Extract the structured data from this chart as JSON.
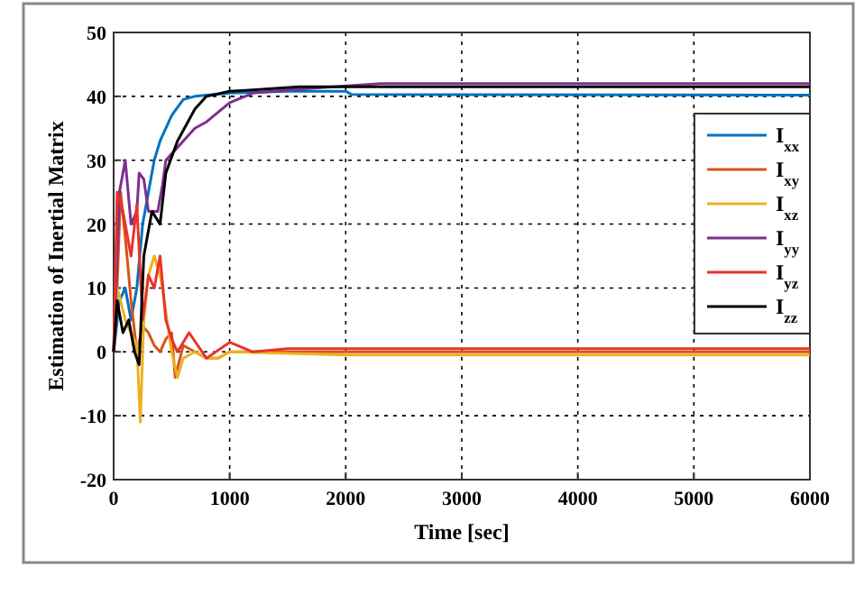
{
  "chart_data": {
    "type": "line",
    "xlabel": "Time [sec]",
    "ylabel": "Estimation of Inertial Matrix",
    "xlim": [
      0,
      6000
    ],
    "ylim": [
      -20,
      50
    ],
    "xticks": [
      0,
      1000,
      2000,
      3000,
      4000,
      5000,
      6000
    ],
    "yticks": [
      -20,
      -10,
      0,
      10,
      20,
      30,
      40,
      50
    ],
    "grid": true,
    "legend": "right",
    "line_style": "solid",
    "marker": "none",
    "series": [
      {
        "name": "I$_{xx}$",
        "color": "#0072bd",
        "x": [
          0,
          50,
          100,
          150,
          200,
          250,
          300,
          350,
          400,
          500,
          600,
          700,
          800,
          1000,
          1500,
          2000,
          2050,
          6000
        ],
        "values": [
          0,
          8,
          10,
          5,
          10,
          20,
          25,
          30,
          33,
          37,
          39.5,
          40,
          40.2,
          40.5,
          40.8,
          40.8,
          40.3,
          40.2
        ]
      },
      {
        "name": "I$_{xy}$",
        "color": "#d95319",
        "x": [
          0,
          30,
          60,
          100,
          150,
          200,
          250,
          300,
          350,
          400,
          450,
          500,
          530,
          600,
          700,
          800,
          900,
          1000,
          1500,
          6000
        ],
        "values": [
          0,
          10,
          25,
          18,
          8,
          0,
          4,
          3,
          1,
          0,
          2,
          3,
          -4,
          1,
          0,
          -1,
          -1,
          0,
          0,
          0
        ]
      },
      {
        "name": "I$_{xz}$",
        "color": "#edb120",
        "x": [
          0,
          30,
          60,
          100,
          150,
          200,
          230,
          260,
          300,
          350,
          400,
          420,
          500,
          550,
          600,
          700,
          800,
          900,
          1000,
          2000,
          6000
        ],
        "values": [
          0,
          10,
          8,
          5,
          3,
          1,
          -11,
          5,
          12,
          15,
          12,
          10,
          0,
          -4,
          -1,
          0,
          -1,
          -1,
          0,
          -0.5,
          -0.5
        ]
      },
      {
        "name": "I$_{yy}$",
        "color": "#7e2f8e",
        "x": [
          0,
          50,
          100,
          150,
          200,
          220,
          260,
          300,
          380,
          420,
          450,
          500,
          600,
          700,
          800,
          1000,
          1200,
          1500,
          2300,
          6000
        ],
        "values": [
          0,
          25,
          30,
          20,
          22,
          28,
          27,
          22,
          22,
          26,
          30,
          31,
          33,
          35,
          36,
          39,
          40.5,
          41,
          42,
          42
        ]
      },
      {
        "name": "I$_{yz}$",
        "color": "#e8332a",
        "x": [
          0,
          30,
          80,
          150,
          200,
          250,
          300,
          350,
          400,
          450,
          500,
          550,
          650,
          800,
          1000,
          1200,
          1500,
          6000
        ],
        "values": [
          0,
          25,
          22,
          15,
          23,
          5,
          12,
          10,
          15,
          5,
          2,
          0,
          3,
          -1,
          1.5,
          0,
          0.5,
          0.5
        ]
      },
      {
        "name": "I$_{zz}$",
        "color": "#000000",
        "x": [
          0,
          30,
          80,
          130,
          180,
          220,
          260,
          330,
          400,
          450,
          550,
          700,
          800,
          1000,
          1200,
          1600,
          6000
        ],
        "values": [
          0,
          8,
          3,
          5,
          0,
          -2,
          15,
          22,
          20,
          28,
          33,
          38,
          40,
          40.8,
          41,
          41.5,
          41.5
        ]
      }
    ]
  }
}
